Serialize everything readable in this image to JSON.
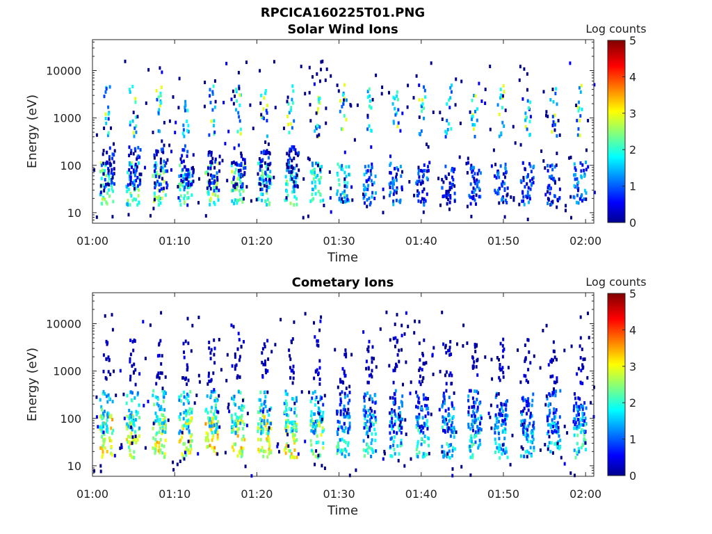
{
  "figure": {
    "filename": "RPCICA160225T01.PNG"
  },
  "chart_data": [
    {
      "type": "heatmap",
      "title": "Solar Wind Ions",
      "xlabel": "Time",
      "ylabel": "Energy (eV)",
      "x_range": [
        "01:00",
        "02:01"
      ],
      "y_scale": "log",
      "ylim": [
        6,
        45000
      ],
      "x_ticks": [
        "01:00",
        "01:10",
        "01:20",
        "01:30",
        "01:40",
        "01:50",
        "02:00"
      ],
      "y_ticks": [
        10,
        100,
        1000,
        10000
      ],
      "y_tick_labels": [
        "10",
        "100",
        "1000",
        "10000"
      ],
      "colorbar": {
        "label": "Log counts",
        "min": 0,
        "max": 5,
        "ticks": [
          "0",
          "1",
          "2",
          "3",
          "4",
          "5"
        ],
        "colormap": "jet"
      },
      "scan_period_minutes": 3.2,
      "bursts": [
        {
          "t": 1.6,
          "e": 30,
          "v": 2.3
        },
        {
          "t": 1.8,
          "e": 60,
          "v": 0.6
        },
        {
          "t": 4.8,
          "e": 30,
          "v": 2.2
        },
        {
          "t": 5.0,
          "e": 70,
          "v": 0.6
        },
        {
          "t": 8.0,
          "e": 30,
          "v": 2.4
        },
        {
          "t": 8.2,
          "e": 60,
          "v": 0.7
        },
        {
          "t": 11.2,
          "e": 30,
          "v": 2.1
        },
        {
          "t": 11.4,
          "e": 70,
          "v": 0.6
        },
        {
          "t": 14.4,
          "e": 30,
          "v": 2.5
        },
        {
          "t": 14.6,
          "e": 60,
          "v": 0.7
        },
        {
          "t": 17.6,
          "e": 30,
          "v": 2.4
        },
        {
          "t": 17.8,
          "e": 70,
          "v": 0.6
        },
        {
          "t": 20.8,
          "e": 30,
          "v": 2.1
        },
        {
          "t": 21.0,
          "e": 60,
          "v": 0.6
        },
        {
          "t": 24.0,
          "e": 30,
          "v": 2.2
        },
        {
          "t": 24.2,
          "e": 70,
          "v": 0.6
        },
        {
          "t": 27.2,
          "e": 30,
          "v": 2.0
        },
        {
          "t": 30.4,
          "e": 30,
          "v": 1.9
        },
        {
          "t": 33.6,
          "e": 30,
          "v": 1.2
        },
        {
          "t": 36.8,
          "e": 30,
          "v": 1.0
        },
        {
          "t": 40.0,
          "e": 30,
          "v": 0.9
        },
        {
          "t": 43.2,
          "e": 30,
          "v": 0.9
        },
        {
          "t": 46.4,
          "e": 30,
          "v": 0.9
        },
        {
          "t": 49.6,
          "e": 30,
          "v": 0.9
        },
        {
          "t": 52.8,
          "e": 30,
          "v": 1.0
        },
        {
          "t": 56.0,
          "e": 30,
          "v": 0.9
        },
        {
          "t": 59.2,
          "e": 30,
          "v": 1.2
        }
      ],
      "high_energy_beam": {
        "e_min": 400,
        "e_max": 5000,
        "v": 1.9,
        "peak_v": 3.0
      }
    },
    {
      "type": "heatmap",
      "title": "Cometary Ions",
      "xlabel": "Time",
      "ylabel": "Energy (eV)",
      "x_range": [
        "01:00",
        "02:01"
      ],
      "y_scale": "log",
      "ylim": [
        6,
        45000
      ],
      "x_ticks": [
        "01:00",
        "01:10",
        "01:20",
        "01:30",
        "01:40",
        "01:50",
        "02:00"
      ],
      "y_ticks": [
        10,
        100,
        1000,
        10000
      ],
      "y_tick_labels": [
        "10",
        "100",
        "1000",
        "10000"
      ],
      "colorbar": {
        "label": "Log counts",
        "min": 0,
        "max": 5,
        "ticks": [
          "0",
          "1",
          "2",
          "3",
          "4",
          "5"
        ],
        "colormap": "jet"
      },
      "scan_period_minutes": 3.2,
      "bursts": [
        {
          "t": 1.6,
          "e": 30,
          "v": 3.1
        },
        {
          "t": 1.6,
          "e": 100,
          "v": 2.0
        },
        {
          "t": 4.8,
          "e": 30,
          "v": 3.0
        },
        {
          "t": 4.8,
          "e": 100,
          "v": 1.9
        },
        {
          "t": 8.0,
          "e": 30,
          "v": 3.1
        },
        {
          "t": 8.0,
          "e": 100,
          "v": 2.0
        },
        {
          "t": 11.2,
          "e": 30,
          "v": 2.9
        },
        {
          "t": 11.2,
          "e": 100,
          "v": 1.9
        },
        {
          "t": 14.4,
          "e": 30,
          "v": 3.2
        },
        {
          "t": 14.4,
          "e": 100,
          "v": 2.0
        },
        {
          "t": 17.6,
          "e": 30,
          "v": 3.1
        },
        {
          "t": 17.6,
          "e": 100,
          "v": 2.0
        },
        {
          "t": 20.8,
          "e": 30,
          "v": 3.0
        },
        {
          "t": 20.8,
          "e": 100,
          "v": 1.9
        },
        {
          "t": 24.0,
          "e": 30,
          "v": 3.0
        },
        {
          "t": 24.0,
          "e": 100,
          "v": 1.8
        },
        {
          "t": 27.2,
          "e": 30,
          "v": 2.6
        },
        {
          "t": 27.2,
          "e": 100,
          "v": 1.6
        },
        {
          "t": 30.4,
          "e": 30,
          "v": 2.0
        },
        {
          "t": 30.4,
          "e": 100,
          "v": 1.2
        },
        {
          "t": 33.6,
          "e": 30,
          "v": 1.9
        },
        {
          "t": 33.6,
          "e": 100,
          "v": 1.1
        },
        {
          "t": 36.8,
          "e": 30,
          "v": 1.8
        },
        {
          "t": 36.8,
          "e": 100,
          "v": 1.0
        },
        {
          "t": 40.0,
          "e": 30,
          "v": 1.8
        },
        {
          "t": 40.0,
          "e": 100,
          "v": 1.0
        },
        {
          "t": 43.2,
          "e": 30,
          "v": 1.8
        },
        {
          "t": 43.2,
          "e": 100,
          "v": 1.0
        },
        {
          "t": 46.4,
          "e": 30,
          "v": 1.9
        },
        {
          "t": 46.4,
          "e": 100,
          "v": 1.0
        },
        {
          "t": 49.6,
          "e": 30,
          "v": 1.7
        },
        {
          "t": 49.6,
          "e": 100,
          "v": 1.0
        },
        {
          "t": 52.8,
          "e": 30,
          "v": 1.8
        },
        {
          "t": 52.8,
          "e": 100,
          "v": 1.1
        },
        {
          "t": 56.0,
          "e": 30,
          "v": 1.8
        },
        {
          "t": 56.0,
          "e": 100,
          "v": 1.1
        },
        {
          "t": 59.2,
          "e": 30,
          "v": 1.9
        },
        {
          "t": 59.2,
          "e": 100,
          "v": 1.2
        }
      ],
      "high_energy_beam": {
        "e_min": 500,
        "e_max": 5000,
        "v": 0.3,
        "peak_v": 0.6
      }
    }
  ]
}
